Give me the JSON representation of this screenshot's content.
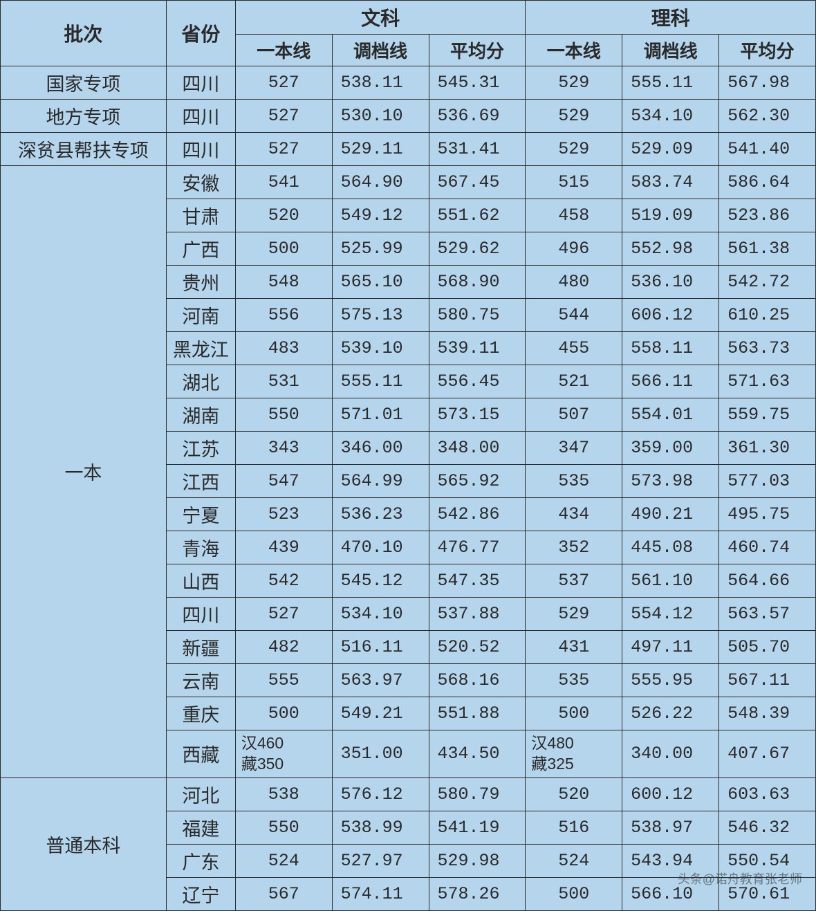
{
  "header": {
    "batch": "批次",
    "province": "省份",
    "liberal": "文科",
    "science": "理科",
    "tier1": "一本线",
    "adjust": "调档线",
    "avg": "平均分"
  },
  "colors": {
    "background": "#b4d5ec",
    "border": "#2a2a2a",
    "text": "#2a2a2a"
  },
  "watermark": "头条@诺舟教育张老师",
  "sections": [
    {
      "batch": "国家专项",
      "rows": [
        {
          "province": "四川",
          "l1": "527",
          "l2": "538.11",
          "l3": "545.31",
          "s1": "529",
          "s2": "555.11",
          "s3": "567.98"
        }
      ]
    },
    {
      "batch": "地方专项",
      "rows": [
        {
          "province": "四川",
          "l1": "527",
          "l2": "530.10",
          "l3": "536.69",
          "s1": "529",
          "s2": "534.10",
          "s3": "562.30"
        }
      ]
    },
    {
      "batch": "深贫县帮扶专项",
      "rows": [
        {
          "province": "四川",
          "l1": "527",
          "l2": "529.11",
          "l3": "531.41",
          "s1": "529",
          "s2": "529.09",
          "s3": "541.40"
        }
      ]
    },
    {
      "batch": "一本",
      "rows": [
        {
          "province": "安徽",
          "l1": "541",
          "l2": "564.90",
          "l3": "567.45",
          "s1": "515",
          "s2": "583.74",
          "s3": "586.64"
        },
        {
          "province": "甘肃",
          "l1": "520",
          "l2": "549.12",
          "l3": "551.62",
          "s1": "458",
          "s2": "519.09",
          "s3": "523.86"
        },
        {
          "province": "广西",
          "l1": "500",
          "l2": "525.99",
          "l3": "529.62",
          "s1": "496",
          "s2": "552.98",
          "s3": "561.38"
        },
        {
          "province": "贵州",
          "l1": "548",
          "l2": "565.10",
          "l3": "568.90",
          "s1": "480",
          "s2": "536.10",
          "s3": "542.72"
        },
        {
          "province": "河南",
          "l1": "556",
          "l2": "575.13",
          "l3": "580.75",
          "s1": "544",
          "s2": "606.12",
          "s3": "610.25"
        },
        {
          "province": "黑龙江",
          "l1": "483",
          "l2": "539.10",
          "l3": "539.11",
          "s1": "455",
          "s2": "558.11",
          "s3": "563.73"
        },
        {
          "province": "湖北",
          "l1": "531",
          "l2": "555.11",
          "l3": "556.45",
          "s1": "521",
          "s2": "566.11",
          "s3": "571.63"
        },
        {
          "province": "湖南",
          "l1": "550",
          "l2": "571.01",
          "l3": "573.15",
          "s1": "507",
          "s2": "554.01",
          "s3": "559.75"
        },
        {
          "province": "江苏",
          "l1": "343",
          "l2": "346.00",
          "l3": "348.00",
          "s1": "347",
          "s2": "359.00",
          "s3": "361.30"
        },
        {
          "province": "江西",
          "l1": "547",
          "l2": "564.99",
          "l3": "565.92",
          "s1": "535",
          "s2": "573.98",
          "s3": "577.03"
        },
        {
          "province": "宁夏",
          "l1": "523",
          "l2": "536.23",
          "l3": "542.86",
          "s1": "434",
          "s2": "490.21",
          "s3": "495.75"
        },
        {
          "province": "青海",
          "l1": "439",
          "l2": "470.10",
          "l3": "476.77",
          "s1": "352",
          "s2": "445.08",
          "s3": "460.74"
        },
        {
          "province": "山西",
          "l1": "542",
          "l2": "545.12",
          "l3": "547.35",
          "s1": "537",
          "s2": "561.10",
          "s3": "564.66"
        },
        {
          "province": "四川",
          "l1": "527",
          "l2": "534.10",
          "l3": "537.88",
          "s1": "529",
          "s2": "554.12",
          "s3": "563.57"
        },
        {
          "province": "新疆",
          "l1": "482",
          "l2": "516.11",
          "l3": "520.52",
          "s1": "431",
          "s2": "497.11",
          "s3": "505.70"
        },
        {
          "province": "云南",
          "l1": "555",
          "l2": "563.97",
          "l3": "568.16",
          "s1": "535",
          "s2": "555.95",
          "s3": "567.11"
        },
        {
          "province": "重庆",
          "l1": "500",
          "l2": "549.21",
          "l3": "551.88",
          "s1": "500",
          "s2": "526.22",
          "s3": "548.39"
        },
        {
          "province": "西藏",
          "l1": "汉460\n藏350",
          "l2": "351.00",
          "l3": "434.50",
          "s1": "汉480\n藏325",
          "s2": "340.00",
          "s3": "407.67",
          "multiline": true
        }
      ]
    },
    {
      "batch": "普通本科",
      "rows": [
        {
          "province": "河北",
          "l1": "538",
          "l2": "576.12",
          "l3": "580.79",
          "s1": "520",
          "s2": "600.12",
          "s3": "603.63"
        },
        {
          "province": "福建",
          "l1": "550",
          "l2": "538.99",
          "l3": "541.19",
          "s1": "516",
          "s2": "538.97",
          "s3": "546.32"
        },
        {
          "province": "广东",
          "l1": "524",
          "l2": "527.97",
          "l3": "529.98",
          "s1": "524",
          "s2": "543.94",
          "s3": "550.54"
        },
        {
          "province": "辽宁",
          "l1": "567",
          "l2": "574.11",
          "l3": "578.26",
          "s1": "500",
          "s2": "566.10",
          "s3": "570.61"
        }
      ]
    }
  ]
}
